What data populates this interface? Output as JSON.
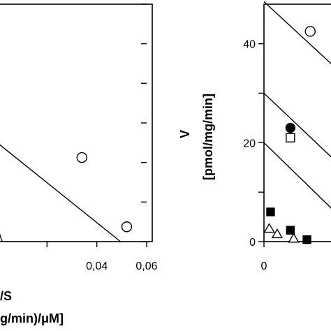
{
  "chart_data": [
    {
      "type": "scatter",
      "title": "",
      "xlabel_line1": "/S",
      "xlabel_line2": "g/min)/μM]",
      "ylabel": "",
      "xlim": [
        0.0,
        0.06
      ],
      "ylim": [
        0,
        48
      ],
      "xticks": [
        {
          "value": 0.04,
          "label": "0,04"
        },
        {
          "value": 0.06,
          "label": "0,06"
        }
      ],
      "grid": false,
      "series": [
        {
          "marker": "open-circle",
          "points": [
            {
              "x": 0.034,
              "y": 17
            },
            {
              "x": 0.052,
              "y": 3
            }
          ]
        }
      ],
      "lines": [
        {
          "x1": 0.0,
          "y1": 20,
          "x2": 0.0495,
          "y2": 0
        },
        {
          "x1": 0.0,
          "y1": 3,
          "x2": 0.002,
          "y2": 0
        }
      ]
    },
    {
      "type": "scatter",
      "title": "",
      "xlabel": "",
      "ylabel_line1": "V",
      "ylabel_line2": "[pmol/mg/min]",
      "xlim": [
        0,
        15
      ],
      "ylim": [
        0,
        48
      ],
      "yticks": [
        {
          "value": 0,
          "label": "0"
        },
        {
          "value": 20,
          "label": "20"
        },
        {
          "value": 40,
          "label": "40"
        }
      ],
      "xticks": [
        {
          "value": 0,
          "label": "0"
        }
      ],
      "grid": false,
      "series": [
        {
          "marker": "open-circle",
          "points": [
            {
              "x": 7,
              "y": 42.5
            }
          ]
        },
        {
          "marker": "filled-circle",
          "points": [
            {
              "x": 4,
              "y": 23
            },
            {
              "x": 14,
              "y": 9
            }
          ]
        },
        {
          "marker": "open-square",
          "points": [
            {
              "x": 4,
              "y": 21
            }
          ]
        },
        {
          "marker": "filled-square",
          "points": [
            {
              "x": 1,
              "y": 6
            },
            {
              "x": 4,
              "y": 2.3
            },
            {
              "x": 6.5,
              "y": 0.4
            }
          ]
        },
        {
          "marker": "open-triangle",
          "points": [
            {
              "x": 0.8,
              "y": 2.6
            },
            {
              "x": 2,
              "y": 1.5
            },
            {
              "x": 4.5,
              "y": 0.6
            }
          ]
        }
      ],
      "lines": [
        {
          "x1": 0,
          "y1": 48.5,
          "x2": 15,
          "y2": 30
        },
        {
          "x1": 0,
          "y1": 30,
          "x2": 15,
          "y2": 11
        },
        {
          "x1": 0,
          "y1": 20,
          "x2": 15,
          "y2": 0.5
        }
      ]
    }
  ]
}
